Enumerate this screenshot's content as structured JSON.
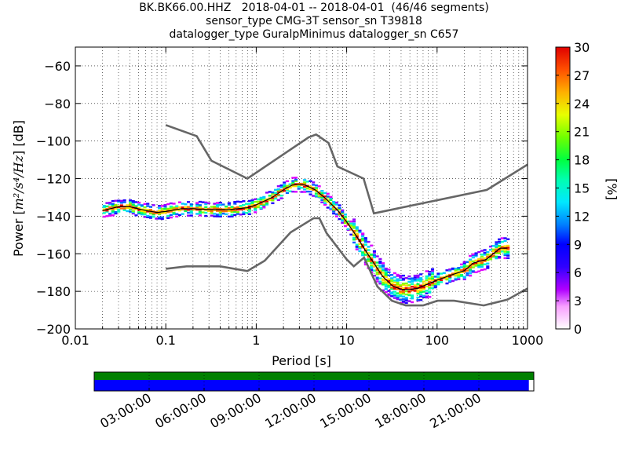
{
  "title_lines": [
    "BK.BK66.00.HHZ   2018-04-01 -- 2018-04-01  (46/46 segments)",
    "sensor_type CMG-3T sensor_sn T39818",
    "datalogger_type GuralpMinimus datalogger_sn C657"
  ],
  "chart_data": {
    "type": "heatmap",
    "title": "BK.BK66.00.HHZ   2018-04-01 -- 2018-04-01  (46/46 segments)",
    "xlabel": "Period [s]",
    "ylabel": "Power [m²/s⁴/Hz] [dB]",
    "x_scale": "log",
    "xlim": [
      0.01,
      1000
    ],
    "ylim": [
      -200,
      -50
    ],
    "xticks": [
      0.01,
      0.1,
      1,
      10,
      100,
      1000
    ],
    "xtick_labels": [
      "0.01",
      "0.1",
      "1",
      "10",
      "100",
      "1000"
    ],
    "yticks": [
      -200,
      -180,
      -160,
      -140,
      -120,
      -100,
      -80,
      -60
    ],
    "ytick_labels": [
      "−200",
      "−180",
      "−160",
      "−140",
      "−120",
      "−100",
      "−80",
      "−60"
    ],
    "grid": true,
    "colorbar": {
      "label": "[%]",
      "range": [
        0,
        30
      ],
      "ticks": [
        0,
        3,
        6,
        9,
        12,
        15,
        18,
        21,
        24,
        27,
        30
      ],
      "tick_labels": [
        "0",
        "3",
        "6",
        "9",
        "12",
        "15",
        "18",
        "21",
        "24",
        "27",
        "30"
      ]
    },
    "nhnm": [
      {
        "x": 0.1,
        "y": -91.5
      },
      {
        "x": 0.22,
        "y": -97.4
      },
      {
        "x": 0.32,
        "y": -110.5
      },
      {
        "x": 0.8,
        "y": -120
      },
      {
        "x": 3.8,
        "y": -98
      },
      {
        "x": 4.6,
        "y": -96.5
      },
      {
        "x": 6.3,
        "y": -101
      },
      {
        "x": 7.9,
        "y": -113.5
      },
      {
        "x": 15.4,
        "y": -120
      },
      {
        "x": 20,
        "y": -138.5
      },
      {
        "x": 354.8,
        "y": -126
      },
      {
        "x": 1000,
        "y": -112.5
      }
    ],
    "nlnm": [
      {
        "x": 0.1,
        "y": -168
      },
      {
        "x": 0.17,
        "y": -166.7
      },
      {
        "x": 0.4,
        "y": -166.7
      },
      {
        "x": 0.8,
        "y": -169.2
      },
      {
        "x": 1.24,
        "y": -163.7
      },
      {
        "x": 2.4,
        "y": -148.6
      },
      {
        "x": 4.3,
        "y": -141.1
      },
      {
        "x": 5.0,
        "y": -141.1
      },
      {
        "x": 6.0,
        "y": -149
      },
      {
        "x": 10.0,
        "y": -163
      },
      {
        "x": 12.0,
        "y": -166.7
      },
      {
        "x": 15.6,
        "y": -162
      },
      {
        "x": 21.9,
        "y": -177.5
      },
      {
        "x": 31.6,
        "y": -185
      },
      {
        "x": 45,
        "y": -187.5
      },
      {
        "x": 70,
        "y": -187.5
      },
      {
        "x": 101,
        "y": -185
      },
      {
        "x": 154,
        "y": -185
      },
      {
        "x": 328,
        "y": -187.5
      },
      {
        "x": 600,
        "y": -184.4
      },
      {
        "x": 1000,
        "y": -178.5
      }
    ],
    "mean_curve": [
      {
        "x": 0.02,
        "y": -137
      },
      {
        "x": 0.03,
        "y": -135
      },
      {
        "x": 0.04,
        "y": -135
      },
      {
        "x": 0.06,
        "y": -137
      },
      {
        "x": 0.08,
        "y": -138
      },
      {
        "x": 0.1,
        "y": -137.5
      },
      {
        "x": 0.15,
        "y": -136
      },
      {
        "x": 0.2,
        "y": -136
      },
      {
        "x": 0.3,
        "y": -136.5
      },
      {
        "x": 0.5,
        "y": -136.5
      },
      {
        "x": 0.8,
        "y": -135.5
      },
      {
        "x": 1.0,
        "y": -134
      },
      {
        "x": 1.5,
        "y": -130
      },
      {
        "x": 2.0,
        "y": -126
      },
      {
        "x": 2.5,
        "y": -123.5
      },
      {
        "x": 3.0,
        "y": -123
      },
      {
        "x": 3.5,
        "y": -123.5
      },
      {
        "x": 4.5,
        "y": -126
      },
      {
        "x": 6.0,
        "y": -131
      },
      {
        "x": 8.0,
        "y": -137
      },
      {
        "x": 10.0,
        "y": -143
      },
      {
        "x": 13.0,
        "y": -151
      },
      {
        "x": 16.0,
        "y": -158
      },
      {
        "x": 20.0,
        "y": -165
      },
      {
        "x": 25.0,
        "y": -172
      },
      {
        "x": 32.0,
        "y": -177
      },
      {
        "x": 40.0,
        "y": -179
      },
      {
        "x": 50.0,
        "y": -179
      },
      {
        "x": 60.0,
        "y": -178.5
      },
      {
        "x": 80.0,
        "y": -176
      },
      {
        "x": 100.0,
        "y": -174
      },
      {
        "x": 150.0,
        "y": -171
      },
      {
        "x": 200.0,
        "y": -169
      },
      {
        "x": 250.0,
        "y": -165
      },
      {
        "x": 350.0,
        "y": -163
      },
      {
        "x": 500.0,
        "y": -157
      },
      {
        "x": 600.0,
        "y": -157
      }
    ],
    "colors": {
      "noise_model": "#666666",
      "mean_curve": "#000000",
      "coverage_data": "#0000ff",
      "coverage_overlap": "#008000"
    }
  },
  "timeline": {
    "tick_labels": [
      "03:00:00",
      "06:00:00",
      "09:00:00",
      "12:00:00",
      "15:00:00",
      "18:00:00",
      "21:00:00"
    ],
    "data_coverage_fraction": 0.9887,
    "overlap_coverage_fraction": 1.0
  }
}
